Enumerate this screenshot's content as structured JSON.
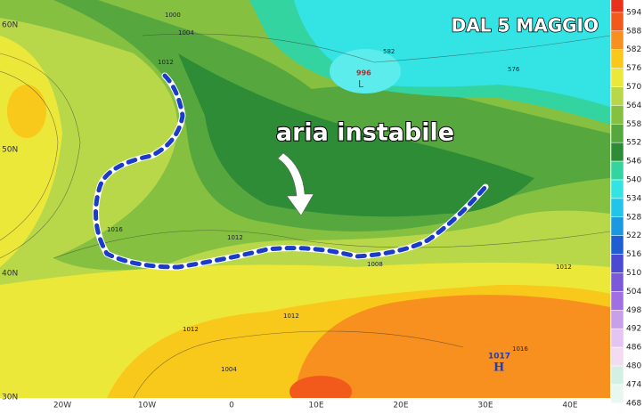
{
  "title": "DAL 5 MAGGIO",
  "annotation": "aria instabile",
  "lat_labels": [
    "60N",
    "50N",
    "40N",
    "30N"
  ],
  "lon_labels": [
    "20W",
    "10W",
    "0",
    "10E",
    "20E",
    "30E",
    "40E"
  ],
  "isobar_labels": [
    "1000",
    "1004",
    "1012",
    "1016",
    "1012",
    "1008",
    "1012",
    "1012",
    "1012",
    "1016",
    "1004",
    "582",
    "576"
  ],
  "low": {
    "value": "996",
    "symbol": "L"
  },
  "high": {
    "value": "1017",
    "symbol": "H"
  },
  "legend": [
    {
      "label": 594,
      "color": "#e8321e"
    },
    {
      "label": 588,
      "color": "#f25a1c"
    },
    {
      "label": 582,
      "color": "#f7901e"
    },
    {
      "label": 576,
      "color": "#f8c81a"
    },
    {
      "label": 570,
      "color": "#ece83a"
    },
    {
      "label": 564,
      "color": "#b8d84a"
    },
    {
      "label": 558,
      "color": "#86c040"
    },
    {
      "label": 552,
      "color": "#56a83e"
    },
    {
      "label": 546,
      "color": "#2e8c36"
    },
    {
      "label": 540,
      "color": "#34d4a0"
    },
    {
      "label": 534,
      "color": "#34e4e4"
    },
    {
      "label": 528,
      "color": "#22c4ea"
    },
    {
      "label": 522,
      "color": "#1c98e0"
    },
    {
      "label": 516,
      "color": "#1f5ed2"
    },
    {
      "label": 510,
      "color": "#4a4ad2"
    },
    {
      "label": 504,
      "color": "#7a5ad8"
    },
    {
      "label": 498,
      "color": "#a070e2"
    },
    {
      "label": 492,
      "color": "#c8a0ea"
    },
    {
      "label": 486,
      "color": "#e4c4f2"
    },
    {
      "label": 480,
      "color": "#f2dcf2"
    },
    {
      "label": 474,
      "color": "#d4f0e4"
    },
    {
      "label": 468,
      "color": "#e8f8f0"
    }
  ]
}
